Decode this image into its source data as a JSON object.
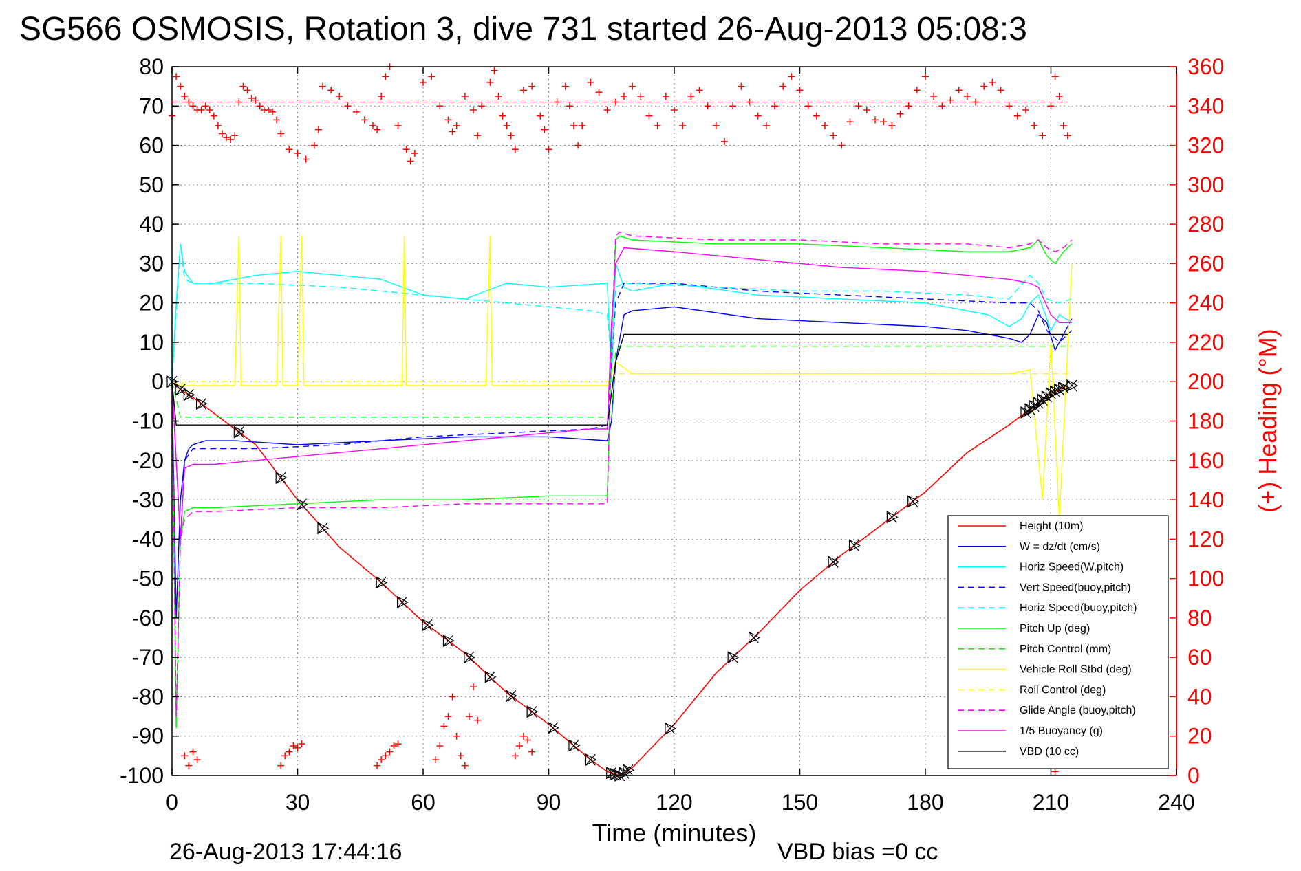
{
  "chart_data": {
    "type": "line",
    "title": "SG566 OSMOSIS, Rotation 3, dive 731 started 26-Aug-2013 05:08:3",
    "xlabel": "Time (minutes)",
    "ylabel": "",
    "ylabel_right": "(+) Heading (°M)",
    "xlim": [
      0,
      240
    ],
    "ylim": [
      -100,
      80
    ],
    "ylim_right": [
      0,
      360
    ],
    "x_ticks": [
      "0",
      "30",
      "60",
      "90",
      "120",
      "150",
      "180",
      "210",
      "240"
    ],
    "y_ticks": [
      "80",
      "70",
      "60",
      "50",
      "40",
      "30",
      "20",
      "10",
      "0",
      "-10",
      "-20",
      "-30",
      "-40",
      "-50",
      "-60",
      "-70",
      "-80",
      "-90",
      "-100"
    ],
    "y_ticks_right": [
      "360",
      "340",
      "320",
      "300",
      "280",
      "260",
      "240",
      "220",
      "200",
      "180",
      "160",
      "140",
      "120",
      "100",
      "80",
      "60",
      "40",
      "20",
      "0"
    ],
    "grid": true,
    "legend_position": "bottom-right",
    "footer_date": "26-Aug-2013 17:44:16",
    "footer_note": "VBD bias =0 cc",
    "heading_ref": 342,
    "series": [
      {
        "name": "Height (10m)",
        "color": "#ff0000",
        "dash": false,
        "x": [
          0,
          2,
          5,
          10,
          20,
          30,
          40,
          50,
          60,
          70,
          80,
          90,
          100,
          104,
          107,
          110,
          120,
          130,
          140,
          150,
          160,
          170,
          180,
          190,
          200,
          205,
          210,
          214
        ],
        "y": [
          0,
          -2,
          -4,
          -8,
          -16,
          -30,
          -42,
          -51,
          -61,
          -69,
          -79,
          -87,
          -96,
          -99,
          -100,
          -98,
          -87,
          -74,
          -64,
          -53,
          -44,
          -36,
          -28,
          -18,
          -11,
          -7,
          -3,
          -1
        ]
      },
      {
        "name": "W = dz/dt (cm/s)",
        "color": "#0000ff",
        "dash": false,
        "x": [
          0,
          1,
          2,
          3,
          4,
          5,
          8,
          15,
          30,
          50,
          70,
          90,
          104,
          105,
          106,
          108,
          110,
          120,
          140,
          160,
          180,
          190,
          200,
          203,
          205,
          207,
          209,
          211,
          213,
          215
        ],
        "y": [
          0,
          -60,
          -30,
          -20,
          -17,
          -16,
          -15,
          -15,
          -16,
          -15,
          -14,
          -14,
          -15,
          -10,
          5,
          17,
          18,
          19,
          16,
          15,
          14,
          13,
          11,
          10,
          12,
          17,
          15,
          8,
          12,
          16
        ]
      },
      {
        "name": "Horiz Speed(W,pitch)",
        "color": "#00ffff",
        "dash": false,
        "x": [
          0,
          1,
          2,
          3,
          5,
          10,
          20,
          30,
          40,
          50,
          60,
          70,
          80,
          90,
          104,
          105,
          106,
          108,
          110,
          120,
          140,
          160,
          180,
          195,
          200,
          203,
          205,
          207,
          210,
          212,
          215
        ],
        "y": [
          0,
          20,
          35,
          28,
          25,
          25,
          27,
          28,
          27,
          26,
          22,
          21,
          25,
          24,
          25,
          0,
          30,
          24,
          23,
          25,
          22,
          21,
          20,
          17,
          14,
          16,
          20,
          22,
          13,
          17,
          15
        ]
      },
      {
        "name": "Vert Speed(buoy,pitch)",
        "color": "#0000ff",
        "dash": true,
        "x": [
          0,
          2,
          3,
          5,
          10,
          20,
          40,
          60,
          80,
          100,
          104,
          105,
          106,
          108,
          110,
          120,
          140,
          160,
          180,
          200,
          205,
          207,
          209,
          212,
          215
        ],
        "y": [
          0,
          -40,
          -20,
          -17,
          -17,
          -17,
          -16,
          -14,
          -13,
          -12,
          -11,
          5,
          20,
          25,
          25,
          25,
          23,
          22,
          21,
          20,
          20,
          18,
          13,
          10,
          13
        ]
      },
      {
        "name": "Horiz Speed(buoy,pitch)",
        "color": "#00ffff",
        "dash": true,
        "x": [
          0,
          2,
          3,
          5,
          10,
          20,
          40,
          60,
          80,
          100,
          104,
          105,
          106,
          108,
          110,
          130,
          150,
          170,
          190,
          200,
          205,
          207,
          209,
          212,
          215
        ],
        "y": [
          0,
          35,
          26,
          25,
          25,
          25,
          24,
          22,
          20,
          18,
          17,
          5,
          24,
          25,
          25,
          24,
          23,
          23,
          22,
          21,
          27,
          25,
          21,
          20,
          21
        ]
      },
      {
        "name": "Pitch Up (deg)",
        "color": "#00ff00",
        "dash": false,
        "x": [
          0,
          1,
          2,
          3,
          5,
          10,
          30,
          50,
          70,
          90,
          104,
          105,
          106,
          107,
          110,
          130,
          150,
          170,
          190,
          200,
          205,
          207,
          209,
          211,
          213,
          215
        ],
        "y": [
          0,
          -88,
          -40,
          -33,
          -32,
          -32,
          -31,
          -30,
          -30,
          -29,
          -29,
          10,
          36,
          37,
          36,
          35,
          35,
          34,
          33,
          33,
          34,
          36,
          32,
          30,
          33,
          35
        ]
      },
      {
        "name": "Pitch Control (mm)",
        "color": "#00ff00",
        "dash": true,
        "x": [
          0,
          2,
          3,
          104,
          105,
          106,
          107,
          205,
          206,
          208,
          210,
          215
        ],
        "y": [
          0,
          -9,
          -9,
          -9,
          -9,
          8,
          9,
          9,
          9,
          9,
          9,
          9
        ]
      },
      {
        "name": "Vehicle Roll Stbd (deg)",
        "color": "#ffff00",
        "dash": false,
        "x": [
          0,
          2,
          5,
          8,
          15,
          16,
          16.5,
          17,
          25,
          26,
          26.5,
          27,
          30,
          31,
          31.5,
          32,
          55,
          55.5,
          56,
          75,
          76,
          76.5,
          77,
          104,
          106,
          110,
          120,
          140,
          160,
          180,
          200,
          205,
          208,
          210,
          212,
          215
        ],
        "y": [
          0,
          -1,
          -1,
          -1,
          -1,
          37,
          -1,
          -1,
          -1,
          37,
          -1,
          -1,
          -1,
          37,
          -1,
          -1,
          -1,
          37,
          -1,
          -1,
          37,
          -1,
          -1,
          -1,
          5,
          2,
          2,
          2,
          2,
          2,
          2,
          3,
          -30,
          10,
          -35,
          30
        ]
      },
      {
        "name": "Roll Control (deg)",
        "color": "#ffff00",
        "dash": true,
        "x": [
          0,
          2,
          3,
          104,
          105,
          106,
          205,
          208,
          210,
          215
        ],
        "y": [
          0,
          -1,
          0,
          0,
          0,
          2,
          2,
          2,
          2,
          2
        ]
      },
      {
        "name": "Glide Angle (buoy,pitch)",
        "color": "#ff00ff",
        "dash": true,
        "x": [
          0,
          1,
          2,
          3,
          5,
          10,
          30,
          50,
          70,
          90,
          104,
          105,
          106,
          107,
          110,
          130,
          150,
          170,
          190,
          200,
          205,
          207,
          209,
          211,
          213,
          215
        ],
        "y": [
          0,
          -85,
          -40,
          -35,
          -33,
          -33,
          -32,
          -32,
          -31,
          -31,
          -31,
          10,
          37,
          38,
          37,
          36,
          36,
          35,
          35,
          34,
          35,
          36,
          34,
          33,
          34,
          36
        ]
      },
      {
        "name": "1/5 Buoyancy (g)",
        "color": "#ff00ff",
        "dash": false,
        "x": [
          0,
          2,
          3,
          5,
          10,
          20,
          40,
          60,
          80,
          100,
          104,
          105,
          106,
          108,
          120,
          140,
          160,
          180,
          200,
          205,
          207,
          210,
          212,
          215
        ],
        "y": [
          0,
          -40,
          -22,
          -21,
          -21,
          -20,
          -18,
          -16,
          -14,
          -12,
          -12,
          15,
          30,
          34,
          33,
          31,
          29,
          28,
          26,
          25,
          24,
          17,
          15,
          15
        ]
      },
      {
        "name": "VBD (10 cc)",
        "color": "#000000",
        "dash": false,
        "x": [
          0,
          1,
          2,
          104,
          106,
          108,
          214
        ],
        "y": [
          0,
          -11,
          -11,
          -11,
          5,
          12,
          12
        ]
      }
    ],
    "heading_points": [
      [
        0,
        335
      ],
      [
        1,
        355
      ],
      [
        2,
        350
      ],
      [
        3,
        345
      ],
      [
        4,
        342
      ],
      [
        5,
        340
      ],
      [
        6,
        338
      ],
      [
        7,
        338
      ],
      [
        8,
        340
      ],
      [
        9,
        338
      ],
      [
        10,
        335
      ],
      [
        11,
        330
      ],
      [
        12,
        326
      ],
      [
        13,
        324
      ],
      [
        14,
        323
      ],
      [
        15,
        325
      ],
      [
        16,
        342
      ],
      [
        17,
        350
      ],
      [
        18,
        348
      ],
      [
        19,
        344
      ],
      [
        20,
        343
      ],
      [
        21,
        340
      ],
      [
        22,
        338
      ],
      [
        23,
        338
      ],
      [
        24,
        337
      ],
      [
        25,
        333
      ],
      [
        26,
        326
      ],
      [
        28,
        318
      ],
      [
        30,
        316
      ],
      [
        32,
        313
      ],
      [
        34,
        320
      ],
      [
        35,
        328
      ],
      [
        36,
        350
      ],
      [
        38,
        348
      ],
      [
        40,
        345
      ],
      [
        42,
        340
      ],
      [
        44,
        337
      ],
      [
        46,
        333
      ],
      [
        48,
        330
      ],
      [
        49,
        328
      ],
      [
        50,
        345
      ],
      [
        51,
        355
      ],
      [
        52,
        360
      ],
      [
        54,
        330
      ],
      [
        56,
        318
      ],
      [
        57,
        312
      ],
      [
        58,
        316
      ],
      [
        60,
        352
      ],
      [
        62,
        355
      ],
      [
        64,
        340
      ],
      [
        66,
        333
      ],
      [
        67,
        327
      ],
      [
        68,
        330
      ],
      [
        70,
        345
      ],
      [
        72,
        338
      ],
      [
        73,
        325
      ],
      [
        74,
        340
      ],
      [
        76,
        352
      ],
      [
        77,
        358
      ],
      [
        78,
        345
      ],
      [
        79,
        335
      ],
      [
        80,
        330
      ],
      [
        81,
        325
      ],
      [
        82,
        318
      ],
      [
        84,
        348
      ],
      [
        86,
        350
      ],
      [
        88,
        335
      ],
      [
        89,
        328
      ],
      [
        90,
        318
      ],
      [
        92,
        342
      ],
      [
        94,
        350
      ],
      [
        95,
        340
      ],
      [
        96,
        330
      ],
      [
        97,
        320
      ],
      [
        98,
        330
      ],
      [
        100,
        352
      ],
      [
        102,
        347
      ],
      [
        104,
        338
      ],
      [
        106,
        342
      ],
      [
        108,
        345
      ],
      [
        110,
        350
      ],
      [
        112,
        345
      ],
      [
        114,
        335
      ],
      [
        116,
        330
      ],
      [
        118,
        345
      ],
      [
        120,
        338
      ],
      [
        122,
        330
      ],
      [
        124,
        345
      ],
      [
        126,
        348
      ],
      [
        128,
        340
      ],
      [
        130,
        330
      ],
      [
        132,
        322
      ],
      [
        134,
        340
      ],
      [
        136,
        350
      ],
      [
        138,
        342
      ],
      [
        140,
        335
      ],
      [
        142,
        330
      ],
      [
        144,
        340
      ],
      [
        146,
        350
      ],
      [
        148,
        355
      ],
      [
        150,
        348
      ],
      [
        152,
        340
      ],
      [
        154,
        335
      ],
      [
        156,
        330
      ],
      [
        158,
        325
      ],
      [
        160,
        320
      ],
      [
        162,
        332
      ],
      [
        164,
        340
      ],
      [
        166,
        338
      ],
      [
        168,
        333
      ],
      [
        170,
        332
      ],
      [
        172,
        330
      ],
      [
        174,
        336
      ],
      [
        176,
        340
      ],
      [
        178,
        348
      ],
      [
        180,
        355
      ],
      [
        182,
        345
      ],
      [
        184,
        340
      ],
      [
        186,
        343
      ],
      [
        188,
        348
      ],
      [
        190,
        345
      ],
      [
        192,
        342
      ],
      [
        194,
        350
      ],
      [
        196,
        352
      ],
      [
        198,
        348
      ],
      [
        200,
        340
      ],
      [
        202,
        335
      ],
      [
        204,
        338
      ],
      [
        206,
        330
      ],
      [
        208,
        325
      ],
      [
        210,
        340
      ],
      [
        211,
        355
      ],
      [
        212,
        345
      ],
      [
        213,
        330
      ],
      [
        214,
        325
      ],
      [
        3,
        10
      ],
      [
        4,
        5
      ],
      [
        5,
        12
      ],
      [
        6,
        8
      ],
      [
        26,
        5
      ],
      [
        27,
        10
      ],
      [
        28,
        12
      ],
      [
        29,
        15
      ],
      [
        30,
        14
      ],
      [
        31,
        16
      ],
      [
        49,
        5
      ],
      [
        50,
        8
      ],
      [
        51,
        10
      ],
      [
        52,
        12
      ],
      [
        53,
        15
      ],
      [
        54,
        16
      ],
      [
        63,
        8
      ],
      [
        64,
        15
      ],
      [
        65,
        25
      ],
      [
        66,
        30
      ],
      [
        67,
        40
      ],
      [
        68,
        20
      ],
      [
        69,
        10
      ],
      [
        70,
        5
      ],
      [
        71,
        30
      ],
      [
        72,
        45
      ],
      [
        73,
        28
      ],
      [
        82,
        10
      ],
      [
        83,
        15
      ],
      [
        84,
        20
      ],
      [
        85,
        18
      ],
      [
        86,
        12
      ],
      [
        210,
        5
      ],
      [
        211,
        2
      ],
      [
        212,
        8
      ]
    ],
    "markers_x": [
      0,
      2,
      4,
      7,
      16,
      26,
      31,
      36,
      50,
      55,
      61,
      66,
      71,
      76,
      81,
      86,
      91,
      96,
      100,
      105,
      106,
      107,
      108,
      109,
      119,
      134,
      139,
      158,
      163,
      172,
      177,
      204,
      205,
      206,
      207,
      208,
      209,
      210,
      211,
      212,
      213,
      215
    ]
  },
  "legend_entries": [
    "Height (10m)",
    "W = dz/dt (cm/s)",
    "Horiz Speed(W,pitch)",
    "Vert Speed(buoy,pitch)",
    "Horiz Speed(buoy,pitch)",
    "Pitch Up (deg)",
    "Pitch Control (mm)",
    "Vehicle Roll Stbd (deg)",
    "Roll Control (deg)",
    "Glide Angle (buoy,pitch)",
    "1/5 Buoyancy (g)",
    "VBD (10 cc)"
  ]
}
